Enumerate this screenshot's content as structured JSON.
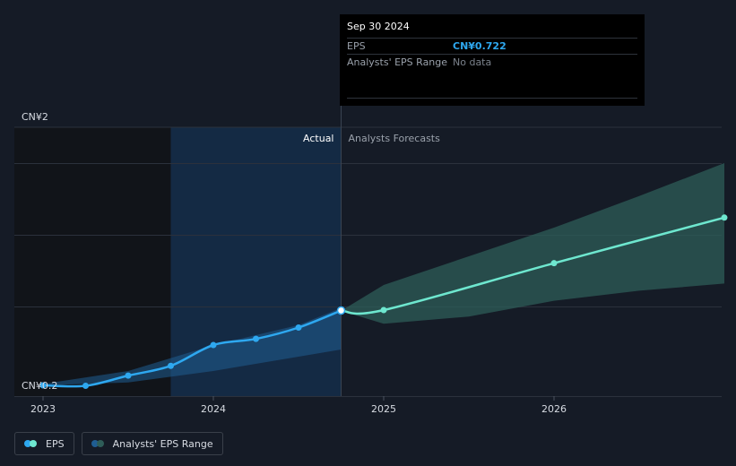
{
  "colors": {
    "background": "#151b26",
    "actual_shade": "#14304f",
    "past_shade": "#111419",
    "eps_actual": "#2ea8f0",
    "eps_forecast": "#6ee7cf",
    "range_actual": "#1f5d92",
    "range_forecast": "#2e5d58",
    "grid": "#2b313c",
    "text": "#d7dbe2"
  },
  "tooltip": {
    "date": "Sep 30 2024",
    "eps_label": "EPS",
    "eps_value": "CN¥0.722",
    "range_label": "Analysts' EPS Range",
    "range_value": "No data"
  },
  "legend": {
    "eps_label": "EPS",
    "range_label": "Analysts' EPS Range"
  },
  "chart_data": {
    "type": "line",
    "title": "",
    "xlabel": "",
    "ylabel": "",
    "y_top_label": "CN¥2",
    "y_bottom_label": "CN¥0.2",
    "ylim": [
      0.2,
      2.0
    ],
    "xlim": [
      2023.0,
      2027.0
    ],
    "x_ticks": [
      {
        "value": 2023,
        "label": "2023"
      },
      {
        "value": 2024,
        "label": "2024"
      },
      {
        "value": 2025,
        "label": "2025"
      },
      {
        "value": 2026,
        "label": "2026"
      }
    ],
    "divider_x": 2024.75,
    "history_shade_start": 2023.75,
    "section_labels": {
      "actual": "Actual",
      "forecast": "Analysts Forecasts"
    },
    "grid": true,
    "legend_position": "bottom-left",
    "series": [
      {
        "name": "EPS",
        "segment": "actual",
        "points": [
          {
            "x": 2023.0,
            "y": 0.2
          },
          {
            "x": 2023.25,
            "y": 0.197
          },
          {
            "x": 2023.5,
            "y": 0.268
          },
          {
            "x": 2023.75,
            "y": 0.336
          },
          {
            "x": 2024.0,
            "y": 0.481
          },
          {
            "x": 2024.25,
            "y": 0.524
          },
          {
            "x": 2024.5,
            "y": 0.603
          },
          {
            "x": 2024.75,
            "y": 0.722
          }
        ]
      },
      {
        "name": "EPS",
        "segment": "forecast",
        "points": [
          {
            "x": 2024.75,
            "y": 0.722
          },
          {
            "x": 2025.0,
            "y": 0.725
          },
          {
            "x": 2026.0,
            "y": 1.052
          },
          {
            "x": 2027.0,
            "y": 1.37
          }
        ]
      }
    ],
    "range_actual": {
      "x": [
        2023.0,
        2023.5,
        2024.0,
        2024.5,
        2024.75
      ],
      "low": [
        0.2,
        0.22,
        0.3,
        0.4,
        0.45
      ],
      "high": [
        0.21,
        0.3,
        0.48,
        0.62,
        0.74
      ]
    },
    "range_forecast": {
      "x": [
        2024.75,
        2025.0,
        2025.5,
        2026.0,
        2026.5,
        2027.0
      ],
      "low": [
        0.72,
        0.63,
        0.68,
        0.79,
        0.86,
        0.91
      ],
      "high": [
        0.72,
        0.9,
        1.1,
        1.3,
        1.52,
        1.75
      ]
    }
  }
}
